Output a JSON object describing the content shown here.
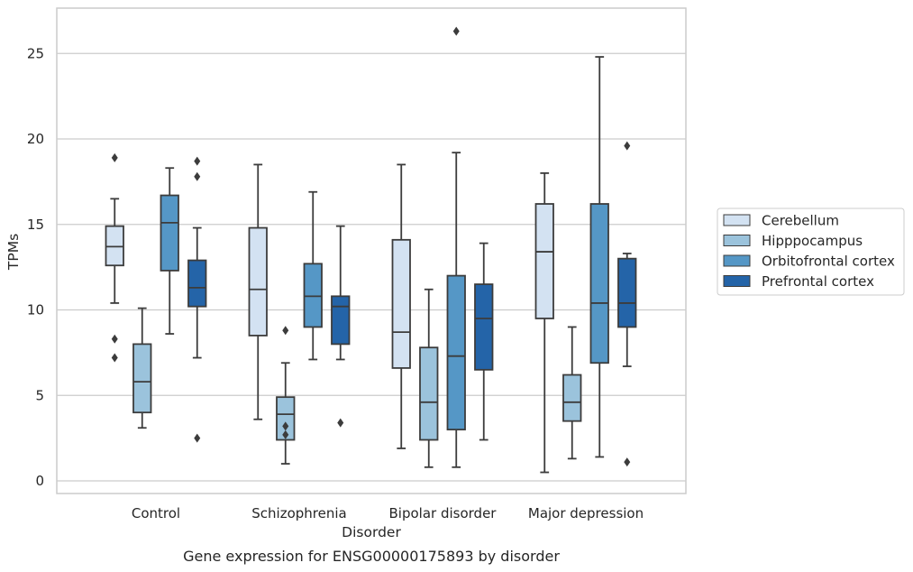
{
  "caption": "Gene expression for ENSG00000175893 by disorder",
  "chart_data": {
    "type": "boxplot",
    "title": "",
    "xlabel": "Disorder",
    "ylabel": "TPMs",
    "ylim": [
      -0.7,
      27.3
    ],
    "yticks": [
      0,
      5,
      10,
      15,
      20,
      25
    ],
    "grid": "horizontal",
    "legend_position": "right",
    "categories": [
      "Control",
      "Schizophrenia",
      "Bipolar disorder",
      "Major depression"
    ],
    "series": [
      {
        "name": "Cerebellum",
        "color": "#d3e2f2",
        "boxes": [
          {
            "whisker_low": 10.4,
            "q1": 12.6,
            "median": 13.7,
            "q3": 14.9,
            "whisker_high": 16.5,
            "outliers": [
              18.9,
              8.3,
              7.2
            ]
          },
          {
            "whisker_low": 3.6,
            "q1": 8.5,
            "median": 11.2,
            "q3": 14.8,
            "whisker_high": 18.5,
            "outliers": []
          },
          {
            "whisker_low": 1.9,
            "q1": 6.6,
            "median": 8.7,
            "q3": 14.1,
            "whisker_high": 18.5,
            "outliers": []
          },
          {
            "whisker_low": 0.5,
            "q1": 9.5,
            "median": 13.4,
            "q3": 16.2,
            "whisker_high": 18.0,
            "outliers": []
          }
        ]
      },
      {
        "name": "Hipppocampus",
        "color": "#9bc3dc",
        "boxes": [
          {
            "whisker_low": 3.1,
            "q1": 4.0,
            "median": 5.8,
            "q3": 8.0,
            "whisker_high": 10.1,
            "outliers": []
          },
          {
            "whisker_low": 1.0,
            "q1": 2.4,
            "median": 3.9,
            "q3": 4.9,
            "whisker_high": 6.9,
            "outliers": [
              8.8,
              3.2,
              2.7
            ]
          },
          {
            "whisker_low": 0.8,
            "q1": 2.4,
            "median": 4.6,
            "q3": 7.8,
            "whisker_high": 11.2,
            "outliers": []
          },
          {
            "whisker_low": 1.3,
            "q1": 3.5,
            "median": 4.6,
            "q3": 6.2,
            "whisker_high": 9.0,
            "outliers": []
          }
        ]
      },
      {
        "name": "Orbitofrontal cortex",
        "color": "#5597c6",
        "boxes": [
          {
            "whisker_low": 8.6,
            "q1": 12.3,
            "median": 15.1,
            "q3": 16.7,
            "whisker_high": 18.3,
            "outliers": []
          },
          {
            "whisker_low": 7.1,
            "q1": 9.0,
            "median": 10.8,
            "q3": 12.7,
            "whisker_high": 16.9,
            "outliers": []
          },
          {
            "whisker_low": 0.8,
            "q1": 3.0,
            "median": 7.3,
            "q3": 12.0,
            "whisker_high": 19.2,
            "outliers": [
              26.3
            ]
          },
          {
            "whisker_low": 1.4,
            "q1": 6.9,
            "median": 10.4,
            "q3": 16.2,
            "whisker_high": 24.8,
            "outliers": []
          }
        ]
      },
      {
        "name": "Prefrontal cortex",
        "color": "#2464a8",
        "boxes": [
          {
            "whisker_low": 7.2,
            "q1": 10.2,
            "median": 11.3,
            "q3": 12.9,
            "whisker_high": 14.8,
            "outliers": [
              18.7,
              17.8,
              2.5
            ]
          },
          {
            "whisker_low": 7.1,
            "q1": 8.0,
            "median": 10.2,
            "q3": 10.8,
            "whisker_high": 14.9,
            "outliers": [
              3.4
            ]
          },
          {
            "whisker_low": 2.4,
            "q1": 6.5,
            "median": 9.5,
            "q3": 11.5,
            "whisker_high": 13.9,
            "outliers": []
          },
          {
            "whisker_low": 6.7,
            "q1": 9.0,
            "median": 10.4,
            "q3": 13.0,
            "whisker_high": 13.3,
            "outliers": [
              19.6,
              1.1
            ]
          }
        ]
      }
    ]
  }
}
